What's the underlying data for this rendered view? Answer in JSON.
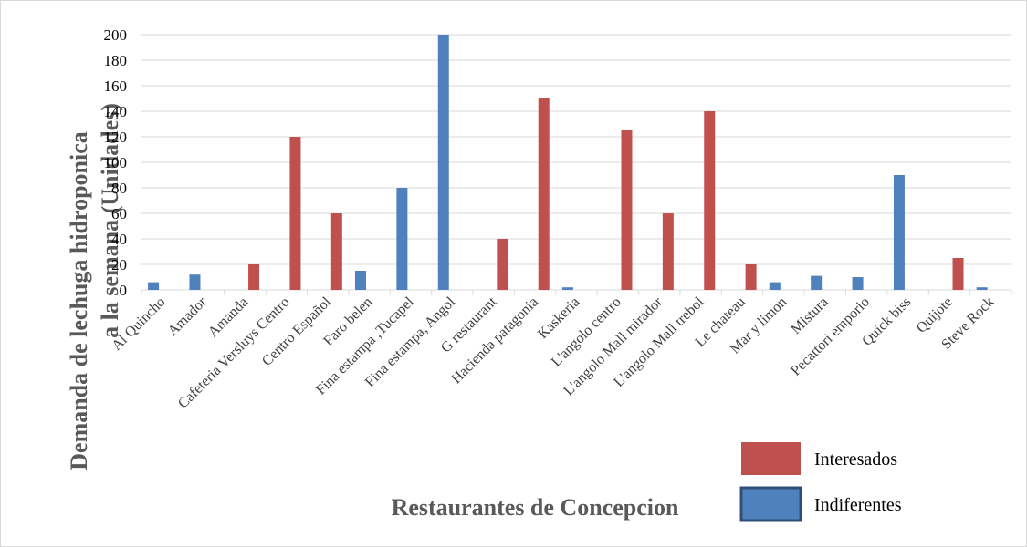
{
  "chart_data": {
    "type": "bar",
    "y_label": [
      "Demanda de lechuga hidroponica",
      "a la semana (Unidades)"
    ],
    "x_label": "Restaurantes de Concepcion",
    "categories": [
      "Al Quincho",
      "Amador",
      "Amanda",
      "Cafeteria Versluys Centro",
      "Centro Español",
      "Faro belen",
      "Fina estampa ,Tucapel",
      "Fina estampa, Angol",
      "G restaurant",
      "Hacienda patagonia",
      "Kaskeria",
      "L'angolo centro",
      "L'angolo Mall mirador",
      "L'angolo Mall trebol",
      "Le chateau",
      "Mar y limon",
      "Mistura",
      "Pecattori emporio",
      "Quick biss",
      "Quijote",
      "Steve Rock"
    ],
    "series": [
      {
        "name": "Interesados",
        "color": "#c0504d",
        "values": [
          null,
          null,
          20,
          120,
          60,
          null,
          null,
          null,
          40,
          150,
          null,
          125,
          60,
          140,
          20,
          null,
          null,
          null,
          null,
          25,
          null
        ]
      },
      {
        "name": "Indiferentes",
        "color": "#4f81bd",
        "values": [
          6,
          12,
          null,
          null,
          null,
          15,
          80,
          200,
          null,
          null,
          2,
          null,
          null,
          null,
          null,
          6,
          11,
          10,
          90,
          null,
          2
        ]
      }
    ],
    "ylim": [
      0,
      200
    ],
    "yticks": [
      0,
      20,
      40,
      60,
      80,
      100,
      120,
      140,
      160,
      180,
      200
    ],
    "grid": true
  }
}
